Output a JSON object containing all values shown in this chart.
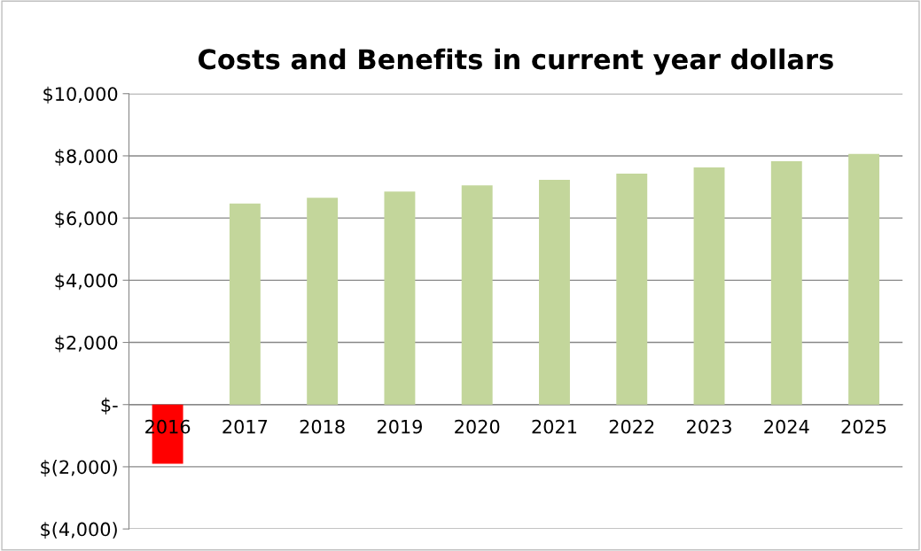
{
  "chart_data": {
    "type": "bar",
    "title": "Costs and Benefits in current year dollars",
    "categories": [
      "2016",
      "2017",
      "2018",
      "2019",
      "2020",
      "2021",
      "2022",
      "2023",
      "2024",
      "2025"
    ],
    "values": [
      -1900,
      6470,
      6650,
      6850,
      7050,
      7230,
      7430,
      7630,
      7830,
      8060
    ],
    "colors": [
      "#ff0000",
      "#c3d69b",
      "#c3d69b",
      "#c3d69b",
      "#c3d69b",
      "#c3d69b",
      "#c3d69b",
      "#c3d69b",
      "#c3d69b",
      "#c3d69b"
    ],
    "ylim": [
      -4000,
      10000
    ],
    "yticks": [
      {
        "value": -4000,
        "label": "$(4,000)"
      },
      {
        "value": -2000,
        "label": "$(2,000)"
      },
      {
        "value": 0,
        "label": "$-"
      },
      {
        "value": 2000,
        "label": "$2,000"
      },
      {
        "value": 4000,
        "label": "$4,000"
      },
      {
        "value": 6000,
        "label": "$6,000"
      },
      {
        "value": 8000,
        "label": "$8,000"
      },
      {
        "value": 10000,
        "label": "$10,000"
      }
    ],
    "grid": "y"
  }
}
